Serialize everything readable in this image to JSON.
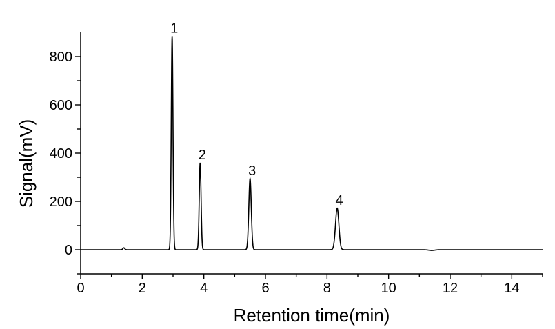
{
  "chart_data": {
    "type": "line",
    "title": "",
    "xlabel": "Retention time(min)",
    "ylabel": "Signal(mV)",
    "xlim": [
      0,
      15
    ],
    "ylim": [
      -100,
      900
    ],
    "x_ticks": [
      0,
      2,
      4,
      6,
      8,
      10,
      12,
      14
    ],
    "y_ticks": [
      0,
      200,
      400,
      600,
      800
    ],
    "x_tick_labels": [
      "0",
      "2",
      "4",
      "6",
      "8",
      "10",
      "12",
      "14"
    ],
    "y_tick_labels": [
      "0",
      "200",
      "400",
      "600",
      "800"
    ],
    "grid": false,
    "legend": "none",
    "line_color": "#000000",
    "series": [
      {
        "baseline": 0,
        "peaks": [
          {
            "label": "1",
            "rt": 2.97,
            "height": 885,
            "sigma": 0.028
          },
          {
            "label": "2",
            "rt": 3.88,
            "height": 360,
            "sigma": 0.03
          },
          {
            "label": "3",
            "rt": 5.5,
            "height": 295,
            "sigma": 0.04
          },
          {
            "label": "4",
            "rt": 8.33,
            "height": 172,
            "sigma": 0.055
          }
        ],
        "minor_features": [
          {
            "rt": 1.4,
            "height": 8,
            "sigma": 0.03
          },
          {
            "rt": 11.4,
            "height": -3,
            "sigma": 0.1
          }
        ]
      }
    ]
  }
}
